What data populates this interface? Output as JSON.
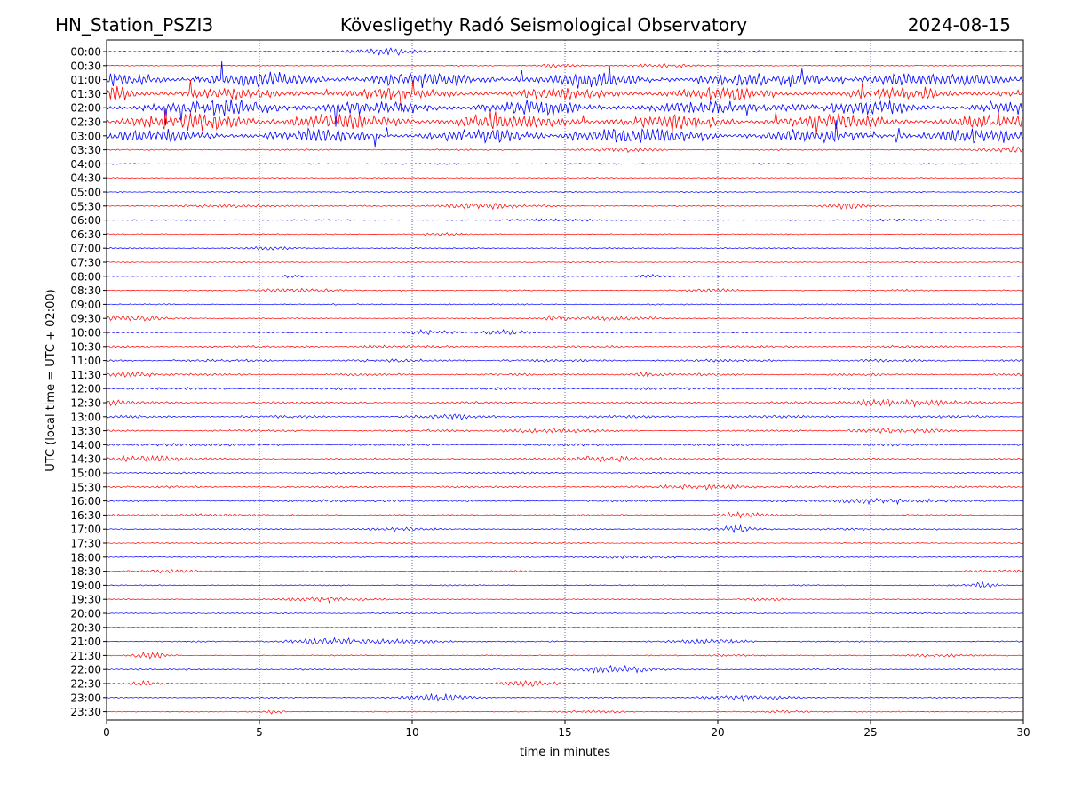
{
  "header": {
    "station": "HN_Station_PSZI3",
    "observatory": "Kövesligethy Radó Seismological Observatory",
    "date": "2024-08-15"
  },
  "chart_data": {
    "type": "line",
    "title": "Kövesligethy Radó Seismological Observatory",
    "xlabel": "time in minutes",
    "ylabel": "UTC (local time = UTC + 02:00)",
    "xlim": [
      0,
      30
    ],
    "xticks": [
      "0",
      "5",
      "10",
      "15",
      "20",
      "25",
      "30"
    ],
    "vertical_gridlines_minutes": [
      5,
      10,
      15,
      20,
      25
    ],
    "colors": {
      "even": "#0000ff",
      "odd": "#ff0000",
      "grid": "#000080"
    },
    "rows": [
      {
        "label": "00:00",
        "activity": 0.03
      },
      {
        "label": "00:30",
        "activity": 0.02
      },
      {
        "label": "01:00",
        "activity": 0.9
      },
      {
        "label": "01:30",
        "activity": 0.75
      },
      {
        "label": "02:00",
        "activity": 0.85
      },
      {
        "label": "02:30",
        "activity": 0.95
      },
      {
        "label": "03:00",
        "activity": 0.85
      },
      {
        "label": "03:30",
        "activity": 0.05
      },
      {
        "label": "04:00",
        "activity": 0.04
      },
      {
        "label": "04:30",
        "activity": 0.03
      },
      {
        "label": "05:00",
        "activity": 0.04
      },
      {
        "label": "05:30",
        "activity": 0.04
      },
      {
        "label": "06:00",
        "activity": 0.03
      },
      {
        "label": "06:30",
        "activity": 0.03
      },
      {
        "label": "07:00",
        "activity": 0.04
      },
      {
        "label": "07:30",
        "activity": 0.03
      },
      {
        "label": "08:00",
        "activity": 0.03
      },
      {
        "label": "08:30",
        "activity": 0.04
      },
      {
        "label": "09:00",
        "activity": 0.04
      },
      {
        "label": "09:30",
        "activity": 0.03
      },
      {
        "label": "10:00",
        "activity": 0.05
      },
      {
        "label": "10:30",
        "activity": 0.12
      },
      {
        "label": "11:00",
        "activity": 0.14
      },
      {
        "label": "11:30",
        "activity": 0.12
      },
      {
        "label": "12:00",
        "activity": 0.12
      },
      {
        "label": "12:30",
        "activity": 0.12
      },
      {
        "label": "13:00",
        "activity": 0.13
      },
      {
        "label": "13:30",
        "activity": 0.1
      },
      {
        "label": "14:00",
        "activity": 0.12
      },
      {
        "label": "14:30",
        "activity": 0.07
      },
      {
        "label": "15:00",
        "activity": 0.08
      },
      {
        "label": "15:30",
        "activity": 0.1
      },
      {
        "label": "16:00",
        "activity": 0.08
      },
      {
        "label": "16:30",
        "activity": 0.06
      },
      {
        "label": "17:00",
        "activity": 0.05
      },
      {
        "label": "17:30",
        "activity": 0.04
      },
      {
        "label": "18:00",
        "activity": 0.04
      },
      {
        "label": "18:30",
        "activity": 0.03
      },
      {
        "label": "19:00",
        "activity": 0.04
      },
      {
        "label": "19:30",
        "activity": 0.03
      },
      {
        "label": "20:00",
        "activity": 0.04
      },
      {
        "label": "20:30",
        "activity": 0.03
      },
      {
        "label": "21:00",
        "activity": 0.04
      },
      {
        "label": "21:30",
        "activity": 0.03
      },
      {
        "label": "22:00",
        "activity": 0.06
      },
      {
        "label": "22:30",
        "activity": 0.03
      },
      {
        "label": "23:00",
        "activity": 0.04
      },
      {
        "label": "23:30",
        "activity": 0.03
      }
    ]
  }
}
